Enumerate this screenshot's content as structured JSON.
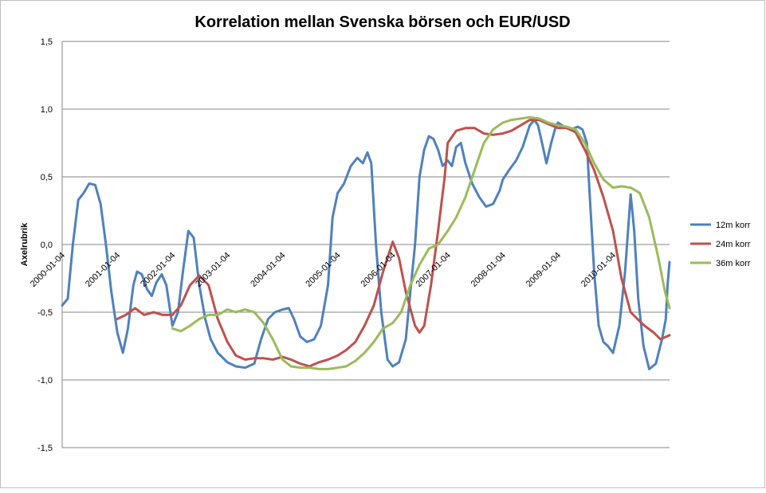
{
  "chart_data": {
    "type": "line",
    "title": "Korrelation mellan Svenska börsen och EUR/USD",
    "xlabel": "",
    "ylabel": "Axelrubrik",
    "ylim": [
      -1.5,
      1.5
    ],
    "yticks": [
      1.5,
      1.0,
      0.5,
      0.0,
      -0.5,
      -1.0,
      -1.5
    ],
    "ytick_labels": [
      "1,5",
      "1,0",
      "0,5",
      "0,0",
      "-0,5",
      "-1,0",
      "-1,5"
    ],
    "x_range": [
      "2000-01-04",
      "2011-01-14"
    ],
    "xticks": [
      "2000-01-04",
      "2001-01-04",
      "2002-01-04",
      "2003-01-04",
      "2004-01-04",
      "2005-01-04",
      "2006-01-04",
      "2007-01-04",
      "2008-01-04",
      "2009-01-04",
      "2010-01-04"
    ],
    "grid": "horizontal",
    "legend_position": "right",
    "series": [
      {
        "name": "12m korr",
        "color": "#4F81BD",
        "points": [
          [
            "2000-01-04",
            -0.45
          ],
          [
            "2000-02-10",
            -0.4
          ],
          [
            "2000-03-15",
            0.0
          ],
          [
            "2000-04-20",
            0.33
          ],
          [
            "2000-05-25",
            0.38
          ],
          [
            "2000-07-01",
            0.45
          ],
          [
            "2000-08-10",
            0.44
          ],
          [
            "2000-09-15",
            0.3
          ],
          [
            "2000-10-20",
            0.0
          ],
          [
            "2000-11-25",
            -0.35
          ],
          [
            "2001-01-04",
            -0.65
          ],
          [
            "2001-02-10",
            -0.8
          ],
          [
            "2001-03-15",
            -0.62
          ],
          [
            "2001-04-20",
            -0.3
          ],
          [
            "2001-05-15",
            -0.2
          ],
          [
            "2001-06-15",
            -0.22
          ],
          [
            "2001-07-20",
            -0.33
          ],
          [
            "2001-08-20",
            -0.38
          ],
          [
            "2001-09-20",
            -0.28
          ],
          [
            "2001-10-25",
            -0.22
          ],
          [
            "2001-11-25",
            -0.3
          ],
          [
            "2002-01-04",
            -0.6
          ],
          [
            "2002-02-10",
            -0.5
          ],
          [
            "2002-03-15",
            -0.2
          ],
          [
            "2002-04-20",
            0.1
          ],
          [
            "2002-05-25",
            0.05
          ],
          [
            "2002-07-01",
            -0.3
          ],
          [
            "2002-08-10",
            -0.55
          ],
          [
            "2002-09-15",
            -0.7
          ],
          [
            "2002-11-01",
            -0.8
          ],
          [
            "2003-01-04",
            -0.87
          ],
          [
            "2003-03-01",
            -0.9
          ],
          [
            "2003-05-01",
            -0.91
          ],
          [
            "2003-07-01",
            -0.88
          ],
          [
            "2003-08-15",
            -0.7
          ],
          [
            "2003-10-01",
            -0.55
          ],
          [
            "2003-11-15",
            -0.5
          ],
          [
            "2004-01-04",
            -0.48
          ],
          [
            "2004-02-15",
            -0.47
          ],
          [
            "2004-03-20",
            -0.55
          ],
          [
            "2004-05-01",
            -0.68
          ],
          [
            "2004-06-15",
            -0.72
          ],
          [
            "2004-08-01",
            -0.7
          ],
          [
            "2004-09-15",
            -0.6
          ],
          [
            "2004-11-01",
            -0.3
          ],
          [
            "2004-12-01",
            0.2
          ],
          [
            "2005-01-04",
            0.38
          ],
          [
            "2005-02-15",
            0.45
          ],
          [
            "2005-04-01",
            0.58
          ],
          [
            "2005-05-15",
            0.64
          ],
          [
            "2005-06-20",
            0.6
          ],
          [
            "2005-07-20",
            0.68
          ],
          [
            "2005-08-15",
            0.6
          ],
          [
            "2005-09-15",
            0.0
          ],
          [
            "2005-10-20",
            -0.5
          ],
          [
            "2005-12-01",
            -0.85
          ],
          [
            "2006-01-04",
            -0.9
          ],
          [
            "2006-02-15",
            -0.87
          ],
          [
            "2006-04-01",
            -0.7
          ],
          [
            "2006-05-01",
            -0.35
          ],
          [
            "2006-06-01",
            0.0
          ],
          [
            "2006-07-01",
            0.5
          ],
          [
            "2006-08-01",
            0.7
          ],
          [
            "2006-09-01",
            0.8
          ],
          [
            "2006-10-01",
            0.78
          ],
          [
            "2006-11-01",
            0.7
          ],
          [
            "2006-12-01",
            0.58
          ],
          [
            "2007-01-04",
            0.62
          ],
          [
            "2007-02-01",
            0.58
          ],
          [
            "2007-03-01",
            0.72
          ],
          [
            "2007-04-01",
            0.75
          ],
          [
            "2007-05-01",
            0.6
          ],
          [
            "2007-06-15",
            0.45
          ],
          [
            "2007-08-01",
            0.35
          ],
          [
            "2007-09-15",
            0.28
          ],
          [
            "2007-11-01",
            0.3
          ],
          [
            "2007-12-15",
            0.4
          ],
          [
            "2008-01-04",
            0.48
          ],
          [
            "2008-02-15",
            0.55
          ],
          [
            "2008-04-01",
            0.62
          ],
          [
            "2008-05-15",
            0.72
          ],
          [
            "2008-07-01",
            0.88
          ],
          [
            "2008-08-01",
            0.92
          ],
          [
            "2008-08-25",
            0.88
          ],
          [
            "2008-09-20",
            0.75
          ],
          [
            "2008-10-20",
            0.6
          ],
          [
            "2008-11-20",
            0.75
          ],
          [
            "2008-12-20",
            0.87
          ],
          [
            "2009-01-04",
            0.9
          ],
          [
            "2009-02-15",
            0.87
          ],
          [
            "2009-04-01",
            0.85
          ],
          [
            "2009-05-15",
            0.87
          ],
          [
            "2009-06-15",
            0.85
          ],
          [
            "2009-07-15",
            0.75
          ],
          [
            "2009-08-01",
            0.4
          ],
          [
            "2009-09-01",
            -0.2
          ],
          [
            "2009-10-01",
            -0.6
          ],
          [
            "2009-11-01",
            -0.72
          ],
          [
            "2009-12-01",
            -0.75
          ],
          [
            "2010-01-04",
            -0.8
          ],
          [
            "2010-02-15",
            -0.6
          ],
          [
            "2010-03-25",
            -0.2
          ],
          [
            "2010-05-01",
            0.37
          ],
          [
            "2010-05-25",
            0.1
          ],
          [
            "2010-06-20",
            -0.4
          ],
          [
            "2010-07-25",
            -0.75
          ],
          [
            "2010-09-01",
            -0.92
          ],
          [
            "2010-10-15",
            -0.88
          ],
          [
            "2010-11-25",
            -0.7
          ],
          [
            "2010-12-20",
            -0.55
          ],
          [
            "2011-01-01",
            -0.3
          ],
          [
            "2011-01-14",
            -0.13
          ]
        ]
      },
      {
        "name": "24m korr",
        "color": "#C0504D",
        "points": [
          [
            "2001-01-04",
            -0.55
          ],
          [
            "2001-03-01",
            -0.52
          ],
          [
            "2001-05-01",
            -0.47
          ],
          [
            "2001-07-01",
            -0.52
          ],
          [
            "2001-09-01",
            -0.5
          ],
          [
            "2001-11-01",
            -0.52
          ],
          [
            "2002-01-04",
            -0.52
          ],
          [
            "2002-03-01",
            -0.45
          ],
          [
            "2002-05-01",
            -0.3
          ],
          [
            "2002-07-01",
            -0.23
          ],
          [
            "2002-09-01",
            -0.3
          ],
          [
            "2002-11-01",
            -0.55
          ],
          [
            "2003-01-04",
            -0.72
          ],
          [
            "2003-03-01",
            -0.82
          ],
          [
            "2003-05-01",
            -0.85
          ],
          [
            "2003-07-01",
            -0.84
          ],
          [
            "2003-09-01",
            -0.84
          ],
          [
            "2003-11-01",
            -0.85
          ],
          [
            "2004-01-04",
            -0.83
          ],
          [
            "2004-03-01",
            -0.85
          ],
          [
            "2004-05-01",
            -0.88
          ],
          [
            "2004-07-01",
            -0.9
          ],
          [
            "2004-09-01",
            -0.87
          ],
          [
            "2004-11-01",
            -0.85
          ],
          [
            "2005-01-04",
            -0.82
          ],
          [
            "2005-03-01",
            -0.78
          ],
          [
            "2005-05-01",
            -0.72
          ],
          [
            "2005-07-01",
            -0.6
          ],
          [
            "2005-09-01",
            -0.45
          ],
          [
            "2005-11-01",
            -0.2
          ],
          [
            "2006-01-04",
            0.02
          ],
          [
            "2006-02-15",
            -0.1
          ],
          [
            "2006-04-01",
            -0.35
          ],
          [
            "2006-06-01",
            -0.6
          ],
          [
            "2006-07-01",
            -0.65
          ],
          [
            "2006-08-01",
            -0.6
          ],
          [
            "2006-09-15",
            -0.3
          ],
          [
            "2006-11-01",
            0.1
          ],
          [
            "2006-12-15",
            0.5
          ],
          [
            "2007-01-04",
            0.75
          ],
          [
            "2007-03-01",
            0.84
          ],
          [
            "2007-05-01",
            0.86
          ],
          [
            "2007-07-01",
            0.86
          ],
          [
            "2007-09-01",
            0.82
          ],
          [
            "2007-11-01",
            0.81
          ],
          [
            "2008-01-04",
            0.82
          ],
          [
            "2008-03-01",
            0.84
          ],
          [
            "2008-05-01",
            0.88
          ],
          [
            "2008-07-01",
            0.92
          ],
          [
            "2008-09-01",
            0.92
          ],
          [
            "2008-11-01",
            0.89
          ],
          [
            "2009-01-04",
            0.86
          ],
          [
            "2009-03-01",
            0.86
          ],
          [
            "2009-05-01",
            0.83
          ],
          [
            "2009-07-01",
            0.7
          ],
          [
            "2009-09-01",
            0.55
          ],
          [
            "2009-11-01",
            0.35
          ],
          [
            "2010-01-04",
            0.1
          ],
          [
            "2010-03-01",
            -0.25
          ],
          [
            "2010-05-01",
            -0.5
          ],
          [
            "2010-06-15",
            -0.55
          ],
          [
            "2010-08-01",
            -0.6
          ],
          [
            "2010-10-01",
            -0.65
          ],
          [
            "2010-11-15",
            -0.7
          ],
          [
            "2011-01-14",
            -0.67
          ]
        ]
      },
      {
        "name": "36m korr",
        "color": "#9BBB59",
        "points": [
          [
            "2002-01-04",
            -0.62
          ],
          [
            "2002-03-01",
            -0.64
          ],
          [
            "2002-05-01",
            -0.6
          ],
          [
            "2002-07-01",
            -0.55
          ],
          [
            "2002-09-01",
            -0.52
          ],
          [
            "2002-11-01",
            -0.52
          ],
          [
            "2003-01-04",
            -0.48
          ],
          [
            "2003-03-01",
            -0.5
          ],
          [
            "2003-05-01",
            -0.48
          ],
          [
            "2003-07-01",
            -0.5
          ],
          [
            "2003-09-01",
            -0.58
          ],
          [
            "2003-11-01",
            -0.7
          ],
          [
            "2004-01-04",
            -0.85
          ],
          [
            "2004-03-01",
            -0.9
          ],
          [
            "2004-05-01",
            -0.91
          ],
          [
            "2004-07-01",
            -0.91
          ],
          [
            "2004-09-01",
            -0.92
          ],
          [
            "2004-11-01",
            -0.92
          ],
          [
            "2005-01-04",
            -0.91
          ],
          [
            "2005-03-01",
            -0.9
          ],
          [
            "2005-05-01",
            -0.86
          ],
          [
            "2005-07-01",
            -0.8
          ],
          [
            "2005-09-01",
            -0.72
          ],
          [
            "2005-11-01",
            -0.62
          ],
          [
            "2006-01-04",
            -0.58
          ],
          [
            "2006-03-01",
            -0.5
          ],
          [
            "2006-05-01",
            -0.3
          ],
          [
            "2006-07-01",
            -0.15
          ],
          [
            "2006-09-01",
            -0.03
          ],
          [
            "2006-11-01",
            0.0
          ],
          [
            "2007-01-04",
            0.1
          ],
          [
            "2007-03-01",
            0.2
          ],
          [
            "2007-05-01",
            0.35
          ],
          [
            "2007-07-01",
            0.55
          ],
          [
            "2007-09-01",
            0.75
          ],
          [
            "2007-11-01",
            0.85
          ],
          [
            "2008-01-04",
            0.9
          ],
          [
            "2008-03-01",
            0.92
          ],
          [
            "2008-05-01",
            0.93
          ],
          [
            "2008-07-01",
            0.94
          ],
          [
            "2008-09-01",
            0.93
          ],
          [
            "2008-11-01",
            0.9
          ],
          [
            "2009-01-04",
            0.88
          ],
          [
            "2009-03-01",
            0.87
          ],
          [
            "2009-05-01",
            0.85
          ],
          [
            "2009-07-01",
            0.75
          ],
          [
            "2009-09-01",
            0.6
          ],
          [
            "2009-11-01",
            0.48
          ],
          [
            "2010-01-04",
            0.42
          ],
          [
            "2010-03-01",
            0.43
          ],
          [
            "2010-05-01",
            0.42
          ],
          [
            "2010-07-01",
            0.38
          ],
          [
            "2010-09-01",
            0.2
          ],
          [
            "2010-11-01",
            -0.1
          ],
          [
            "2010-12-15",
            -0.35
          ],
          [
            "2011-01-14",
            -0.47
          ]
        ]
      }
    ]
  }
}
